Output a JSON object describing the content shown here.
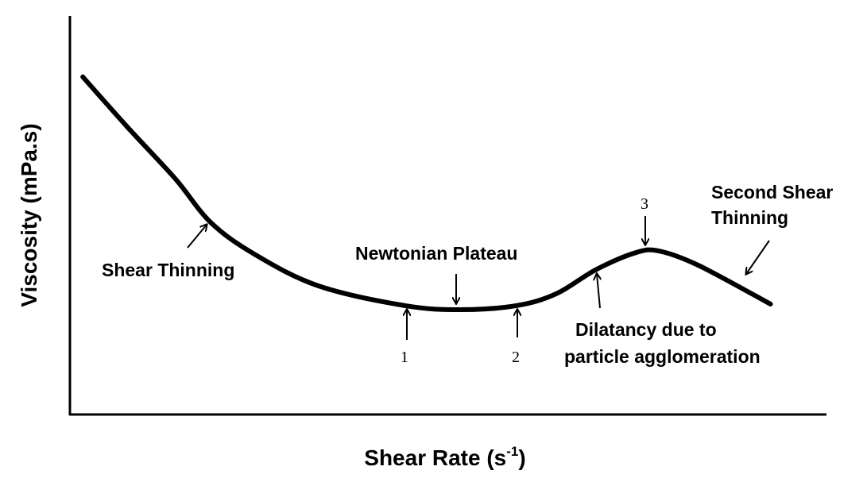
{
  "chart_data": {
    "type": "line",
    "title": "",
    "xlabel": "Shear Rate (s",
    "xlabel_sup": "-1",
    "xlabel_end": ")",
    "ylabel": "Viscosity (mPa.s)",
    "xlim": [
      0,
      100
    ],
    "ylim": [
      0,
      100
    ],
    "grid": false,
    "units_note": "schematic, arbitrary units",
    "series": [
      {
        "name": "viscosity",
        "color": "#000000",
        "x": [
          1.7,
          7.6,
          13.9,
          18.6,
          24.4,
          32.8,
          44.3,
          51.7,
          59.0,
          64.3,
          69.5,
          74.8,
          77.9,
          83.2,
          92.6
        ],
        "y": [
          84.7,
          72.1,
          59.2,
          48.2,
          40.2,
          32.3,
          27.3,
          26.3,
          27.3,
          30.3,
          36.3,
          40.6,
          41.0,
          37.3,
          27.7
        ]
      }
    ],
    "annotations": {
      "shear_thinning": "Shear Thinning",
      "newtonian_plateau": "Newtonian Plateau",
      "dilatancy_line1": "Dilatancy due to",
      "dilatancy_line2": "particle agglomeration",
      "second_line1": "Second Shear",
      "second_line2": "Thinning",
      "point1": "1",
      "point2": "2",
      "point3": "3"
    }
  }
}
